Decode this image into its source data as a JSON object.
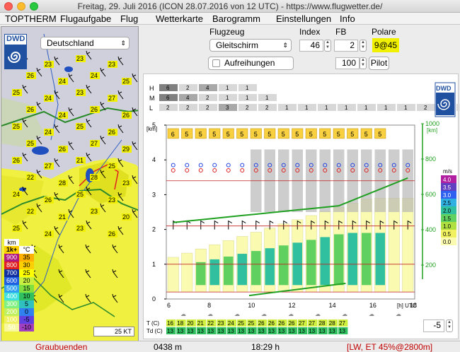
{
  "title": "Freitag, 29. Juli 2016 (ICON 28.07.2016 von 12 UTC) - https://www.flugwetter.de/",
  "menu": [
    "TOPTHERM",
    "Flugaufgabe",
    "Flug",
    "Wetterkarte",
    "Barogramm",
    "Einstellungen",
    "Info"
  ],
  "region": {
    "selected": "Deutschland"
  },
  "dwd_logo": "DWD",
  "map": {
    "scale_label": "25 KT",
    "legend_header": [
      "km",
      "1k+",
      "°C"
    ],
    "legend_rows": [
      {
        "km": "900",
        "c": "35",
        "color_km": "#b01880",
        "color_c": "#ffb000"
      },
      {
        "km": "800",
        "c": "30",
        "color_km": "#e02020",
        "color_c": "#ffd000"
      },
      {
        "km": "700",
        "c": "25",
        "color_km": "#1030a0",
        "color_c": "#ffff00"
      },
      {
        "km": "600",
        "c": "20",
        "color_km": "#2060e0",
        "color_c": "#c8f040"
      },
      {
        "km": "500",
        "c": "15",
        "color_km": "#30a0f0",
        "color_c": "#80e040"
      },
      {
        "km": "400",
        "c": "10",
        "color_km": "#40e0e0",
        "color_c": "#30c060"
      },
      {
        "km": "300",
        "c": "5",
        "color_km": "#80f080",
        "color_c": "#30c0c0"
      },
      {
        "km": "200",
        "c": "0",
        "color_km": "#c0f060",
        "color_c": "#3080f0"
      },
      {
        "km": "100",
        "c": "-5",
        "color_km": "#f0f060",
        "color_c": "#6040e0"
      },
      {
        "km": "50",
        "c": "-10",
        "color_km": "#f8f8a0",
        "color_c": "#a040c0"
      }
    ],
    "station_values": [
      "25",
      "23",
      "23",
      "23",
      "26",
      "24",
      "24",
      "25",
      "25",
      "24",
      "23",
      "27",
      "26",
      "24",
      "26",
      "26",
      "25",
      "24",
      "25",
      "26",
      "25",
      "26",
      "27",
      "29",
      "26",
      "27",
      "21",
      "25",
      "22",
      "28",
      "28",
      "23",
      "24",
      "26",
      "25",
      "23",
      "22",
      "21",
      "23",
      "20",
      "25",
      "24",
      "23",
      "26"
    ]
  },
  "controls": {
    "flugzeug_label": "Flugzeug",
    "flugzeug_value": "Gleitschirm",
    "index_label": "Index",
    "index_value": "46",
    "fb_label": "FB",
    "fb_value": "2",
    "polare_label": "Polare",
    "polare_value": "9@45",
    "aufreihungen_label": "Aufreihungen",
    "pilot_weight": "100",
    "pilot_label": "Pilot"
  },
  "chart": {
    "cloud_rows": [
      {
        "label": "H",
        "values": [
          "6",
          "2",
          "4",
          "1",
          "1"
        ]
      },
      {
        "label": "M",
        "values": [
          "6",
          "4",
          "2",
          "1",
          "1",
          "1"
        ]
      },
      {
        "label": "L",
        "values": [
          "2",
          "2",
          "2",
          "3",
          "2",
          "2",
          "1",
          "1",
          "1",
          "1",
          "1",
          "1",
          "1",
          "2",
          "2",
          "2",
          "2",
          "2",
          "2"
        ]
      }
    ],
    "x_ticks": [
      "6",
      "8",
      "10",
      "12",
      "14",
      "16",
      "18"
    ],
    "x_unit": "[h] UTC",
    "y_ticks_km": [
      "0",
      "1",
      "2",
      "3",
      "4",
      "5"
    ],
    "y_unit_km": "[km]",
    "y_ticks_ft": [
      "200",
      "400",
      "600",
      "800",
      "1000"
    ],
    "y_unit_ft": "[km]",
    "climb_legend_title": "m/s",
    "climb_legend": [
      {
        "v": "4.0",
        "c": "#b020a0"
      },
      {
        "v": "3.5",
        "c": "#6040c0"
      },
      {
        "v": "3.0",
        "c": "#3060f0"
      },
      {
        "v": "2.5",
        "c": "#30b0e0"
      },
      {
        "v": "2.0",
        "c": "#30c0a0"
      },
      {
        "v": "1.5",
        "c": "#60d060"
      },
      {
        "v": "1.0",
        "c": "#b0e040"
      },
      {
        "v": "0.5",
        "c": "#f0f060"
      },
      {
        "v": "0.0",
        "c": "#fafab0"
      }
    ],
    "t_label": "T (C)",
    "td_label": "Td (C)",
    "temps": [
      "16",
      "18",
      "20",
      "21",
      "22",
      "23",
      "24",
      "25",
      "25",
      "26",
      "26",
      "26",
      "26",
      "27",
      "27",
      "28",
      "28",
      "27"
    ],
    "dews": [
      "13",
      "13",
      "13",
      "13",
      "13",
      "13",
      "13",
      "13",
      "13",
      "13",
      "13",
      "13",
      "13",
      "13",
      "13",
      "13",
      "13",
      "13"
    ],
    "offset_value": "-5",
    "level_labels": [
      "6",
      "5",
      "5",
      "5",
      "5",
      "5",
      "5",
      "5",
      "5",
      "5",
      "5",
      "5",
      "5",
      "5",
      "5",
      "5"
    ]
  },
  "status": {
    "region": "Graubuenden",
    "elevation": "0438 m",
    "time": "18:29 h",
    "info": "[LW, ET  45%@2800m]"
  },
  "colors": {
    "accent_yellow": "#f0f000",
    "status_red": "#c00000"
  }
}
